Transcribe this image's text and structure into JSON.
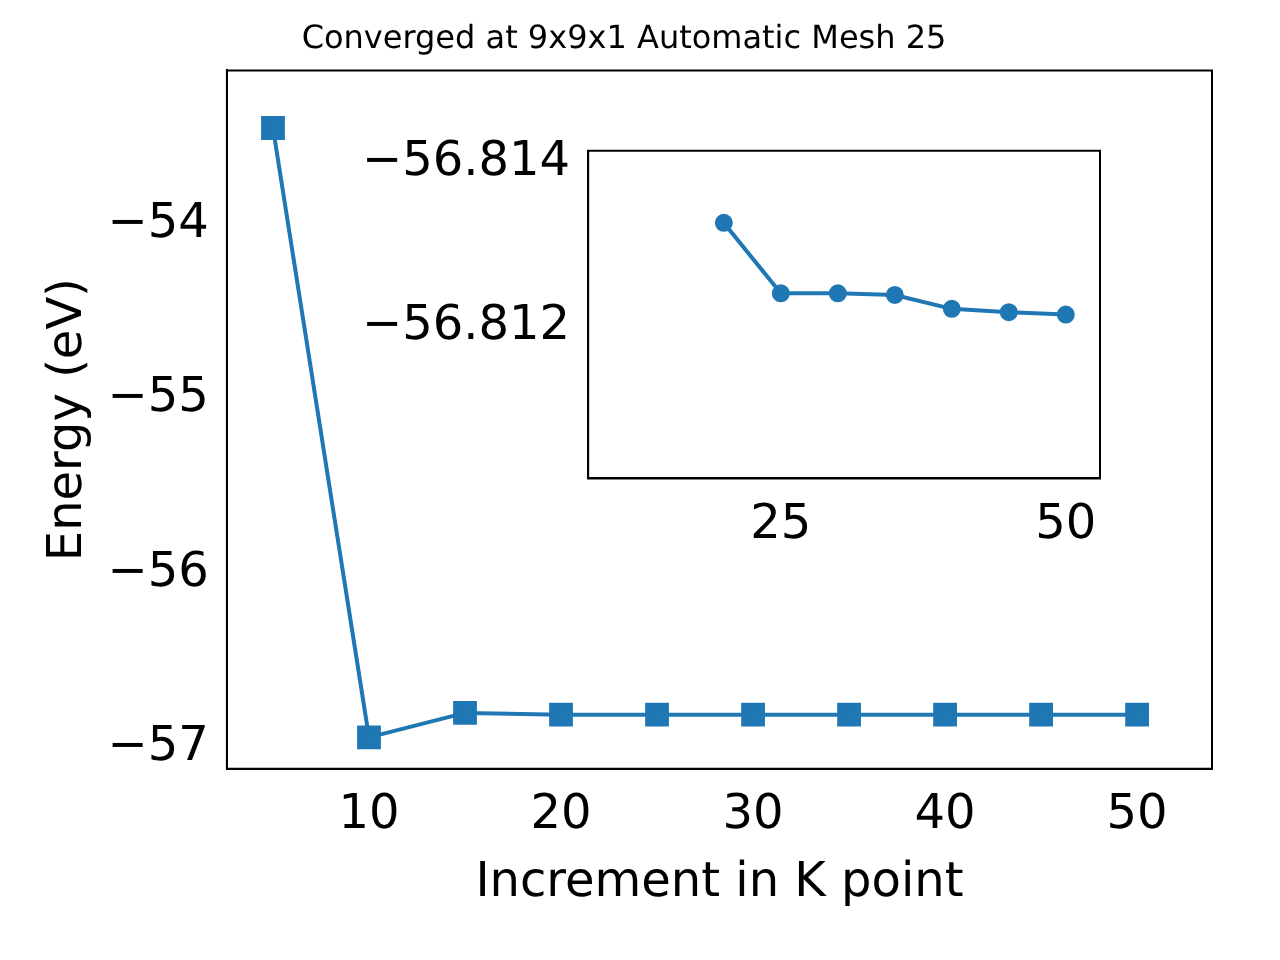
{
  "chart_data": [
    {
      "type": "line",
      "title": "Converged at 9x9x1 Automatic Mesh 25",
      "xlabel": "Increment in K point",
      "ylabel": "Energy (eV)",
      "marker": "square",
      "x": [
        5,
        10,
        15,
        20,
        25,
        30,
        35,
        40,
        45,
        50
      ],
      "series": [
        {
          "color": "#1f77b4",
          "values": [
            -53.45,
            -56.94,
            -56.8,
            -56.81,
            -56.81,
            -56.81,
            -56.81,
            -56.81,
            -56.81,
            -56.81
          ]
        }
      ],
      "xlim": [
        2.6,
        53.9
      ],
      "ylim": [
        -57.12,
        -53.12
      ],
      "xticks": [
        10,
        20,
        30,
        40,
        50
      ],
      "yticks": [
        {
          "value": -54,
          "label": "−54"
        },
        {
          "value": -55,
          "label": "−55"
        },
        {
          "value": -56,
          "label": "−56"
        },
        {
          "value": -57,
          "label": "−57"
        }
      ]
    },
    {
      "type": "line",
      "marker": "circle",
      "x": [
        20,
        25,
        30,
        35,
        40,
        45,
        50
      ],
      "series": [
        {
          "color": "#1f77b4",
          "values": [
            -56.81326,
            -56.8124,
            -56.8124,
            -56.81238,
            -56.81221,
            -56.81217,
            -56.81214
          ]
        }
      ],
      "xlim": [
        8.1,
        53
      ],
      "ylim": [
        -56.81014,
        -56.81414
      ],
      "xticks": [
        25,
        50
      ],
      "yticks": [
        {
          "value": -56.814,
          "label": "−56.814"
        },
        {
          "value": -56.812,
          "label": "−56.812"
        }
      ]
    }
  ]
}
